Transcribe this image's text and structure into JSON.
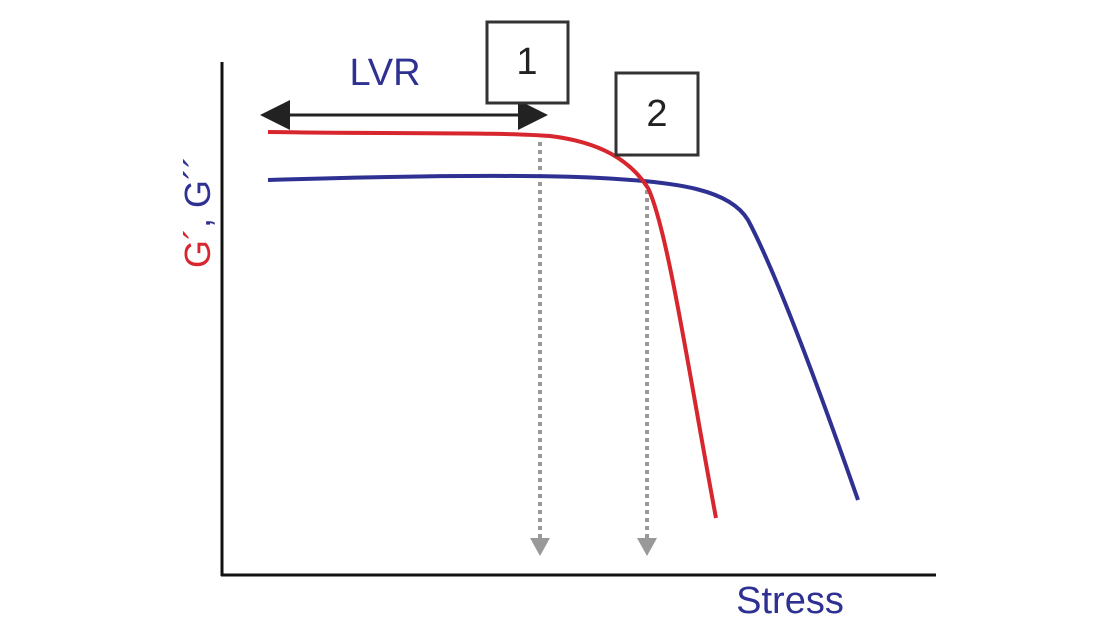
{
  "labels": {
    "lvr": "LVR",
    "box_1": "1",
    "box_2": "2",
    "y_axis": [
      "G´",
      ", G´´"
    ],
    "x_axis": "Stress"
  }
}
